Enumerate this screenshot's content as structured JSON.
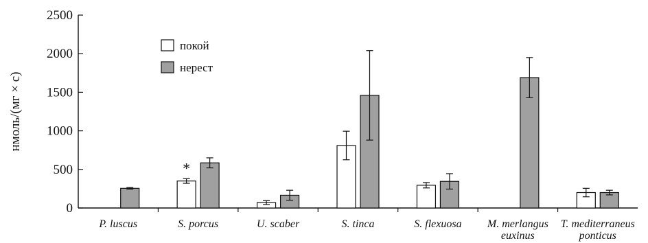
{
  "chart_data": {
    "type": "bar",
    "ylabel": "нмоль/(мг × с)",
    "ylim": [
      0,
      2500
    ],
    "yticks": [
      "0",
      "500",
      "1000",
      "1500",
      "2000",
      "2500"
    ],
    "categories": [
      [
        "P. luscus"
      ],
      [
        "S. porcus"
      ],
      [
        "U. scaber"
      ],
      [
        "S. tinca"
      ],
      [
        "S. flexuosa"
      ],
      [
        "M. merlangus",
        "euxinus"
      ],
      [
        "T. mediterraneus",
        "ponticus"
      ]
    ],
    "series": [
      {
        "name": "покой",
        "color": "#ffffff",
        "values": [
          null,
          350,
          70,
          810,
          295,
          null,
          200
        ],
        "errors": [
          null,
          30,
          25,
          185,
          35,
          null,
          55
        ]
      },
      {
        "name": "нерест",
        "color": "#a0a0a0",
        "values": [
          255,
          585,
          165,
          1460,
          345,
          1690,
          200
        ],
        "errors": [
          10,
          65,
          65,
          580,
          100,
          260,
          30
        ]
      }
    ],
    "annotations": [
      {
        "text": "*",
        "category_index": 1,
        "series_index": 0
      }
    ],
    "legend": {
      "position": "top-left"
    }
  }
}
